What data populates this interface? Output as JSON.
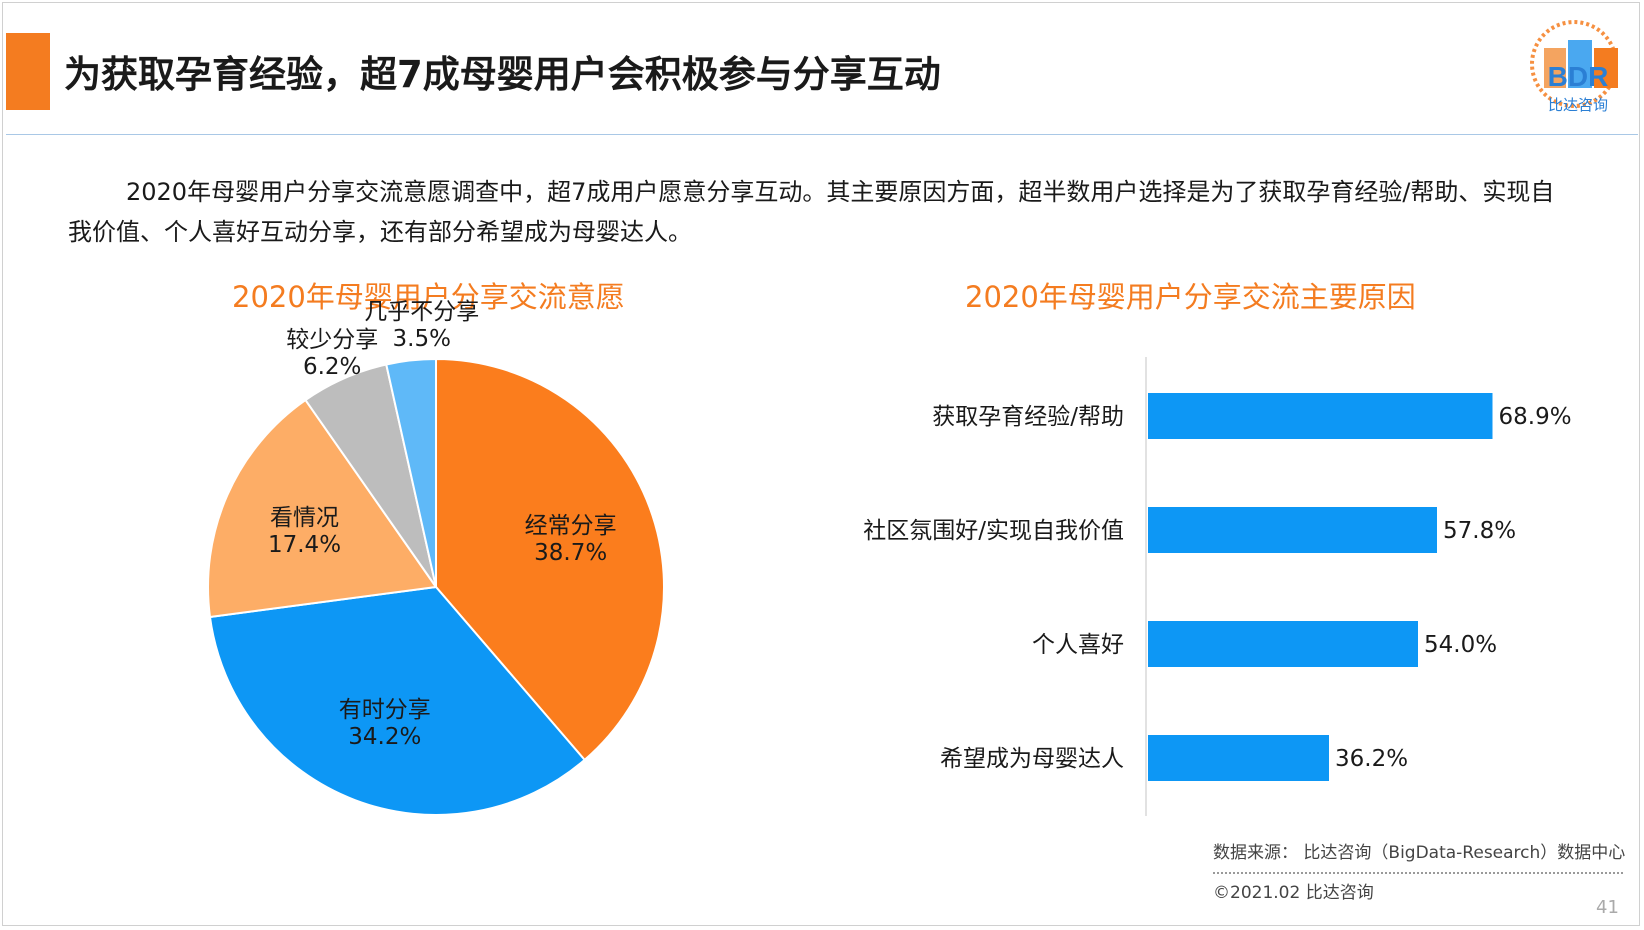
{
  "title": "为获取孕育经验，超7成母婴用户会积极参与分享互动",
  "description": "2020年母婴用户分享交流意愿调查中，超7成用户愿意分享互动。其主要原因方面，超半数用户选择是为了获取孕育经验/帮助、实现自我价值、个人喜好互动分享，还有部分希望成为母婴达人。",
  "logo": {
    "text": "BDR",
    "subtext": "比达咨询",
    "icon": "bdr-building-logo-icon"
  },
  "colors": {
    "accent": "#f47c20",
    "pie": [
      "#fb7d1d",
      "#0d97f5",
      "#fdad66",
      "#bdbdbd",
      "#5fb9f8"
    ],
    "bar": "#0d97f5"
  },
  "chart_data": [
    {
      "type": "pie",
      "title": "2020年母婴用户分享交流意愿",
      "labels": [
        "经常分享",
        "有时分享",
        "看情况",
        "较少分享",
        "几乎不分享"
      ],
      "values": [
        38.7,
        34.2,
        17.4,
        6.2,
        3.5
      ],
      "value_labels": [
        "38.7%",
        "34.2%",
        "17.4%",
        "6.2%",
        "3.5%"
      ],
      "start_angle": "12 o'clock",
      "direction": "clockwise"
    },
    {
      "type": "bar",
      "orientation": "horizontal",
      "title": "2020年母婴用户分享交流主要原因",
      "categories": [
        "获取孕育经验/帮助",
        "社区氛围好/实现自我价值",
        "个人喜好",
        "希望成为母婴达人"
      ],
      "values": [
        68.9,
        57.8,
        54.0,
        36.2
      ],
      "value_labels": [
        "68.9%",
        "57.8%",
        "54.0%",
        "36.2%"
      ],
      "xlim": [
        0,
        100
      ],
      "grid": false
    }
  ],
  "footer": {
    "source": "数据来源： 比达咨询（BigData-Research）数据中心",
    "copyright": "©2021.02 比达咨询",
    "page": "41"
  }
}
